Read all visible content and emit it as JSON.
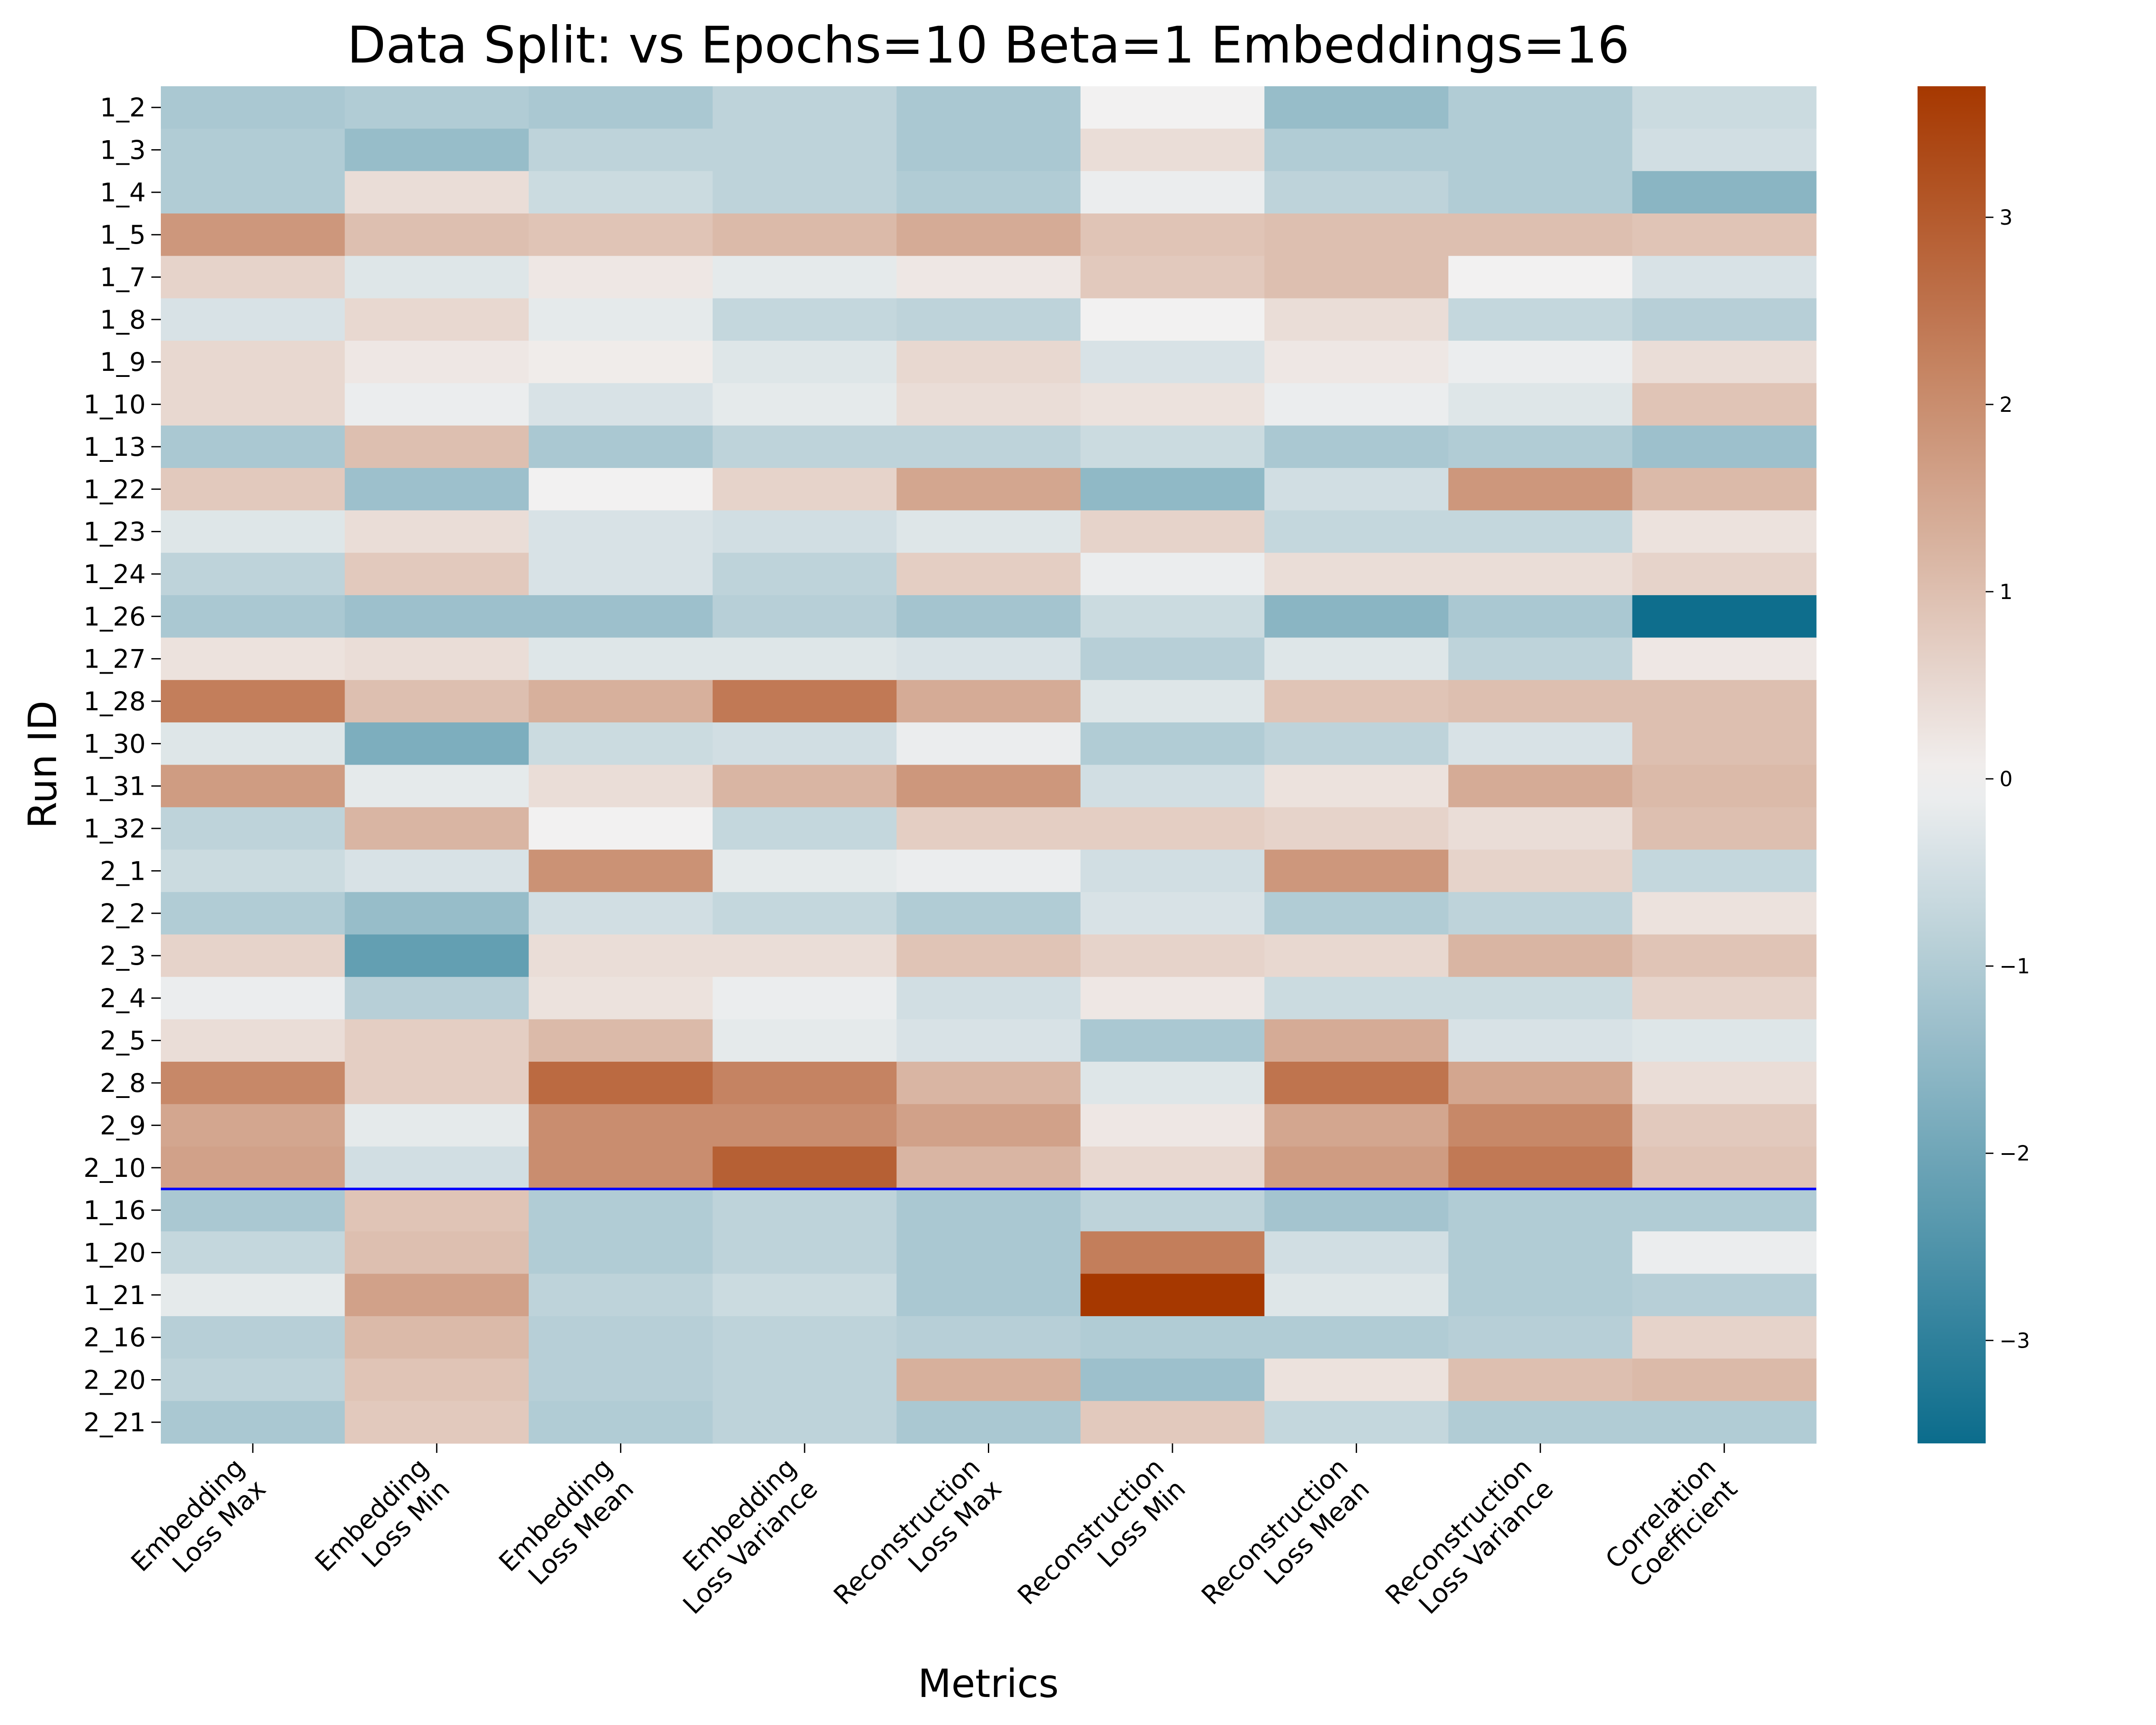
{
  "chart_data": {
    "type": "heatmap",
    "title": "Data Split: vs Epochs=10 Beta=1 Embeddings=16",
    "xlabel": "Metrics",
    "ylabel": "Run ID",
    "columns": [
      [
        "Embedding",
        "Loss Max"
      ],
      [
        "Embedding",
        "Loss Min"
      ],
      [
        "Embedding",
        "Loss Mean"
      ],
      [
        "Embedding",
        "Loss Variance"
      ],
      [
        "Reconstruction",
        "Loss Max"
      ],
      [
        "Reconstruction",
        "Loss Min"
      ],
      [
        "Reconstruction",
        "Loss Mean"
      ],
      [
        "Reconstruction",
        "Loss Variance"
      ],
      [
        "Correlation",
        "Coefficient"
      ]
    ],
    "rows": [
      "1_2",
      "1_3",
      "1_4",
      "1_5",
      "1_7",
      "1_8",
      "1_9",
      "1_10",
      "1_13",
      "1_22",
      "1_23",
      "1_24",
      "1_26",
      "1_27",
      "1_28",
      "1_30",
      "1_31",
      "1_32",
      "2_1",
      "2_2",
      "2_3",
      "2_4",
      "2_5",
      "2_8",
      "2_9",
      "2_10",
      "1_16",
      "1_20",
      "1_21",
      "2_16",
      "2_20",
      "2_21"
    ],
    "values": [
      [
        -1.1,
        -1.0,
        -1.1,
        -0.8,
        -1.1,
        0.0,
        -1.4,
        -1.0,
        -0.6
      ],
      [
        -1.0,
        -1.4,
        -0.8,
        -0.8,
        -1.1,
        0.4,
        -1.0,
        -1.0,
        -0.5
      ],
      [
        -1.0,
        0.4,
        -0.6,
        -0.8,
        -1.0,
        -0.1,
        -0.8,
        -1.0,
        -1.6
      ],
      [
        1.8,
        1.0,
        0.9,
        1.1,
        1.4,
        0.9,
        1.0,
        1.0,
        0.9
      ],
      [
        0.6,
        -0.3,
        0.2,
        -0.2,
        0.2,
        0.8,
        1.0,
        0.0,
        -0.4
      ],
      [
        -0.4,
        0.5,
        -0.2,
        -0.7,
        -0.8,
        0.0,
        0.4,
        -0.7,
        -0.9
      ],
      [
        0.5,
        0.2,
        0.1,
        -0.3,
        0.5,
        -0.4,
        0.2,
        -0.1,
        0.4
      ],
      [
        0.5,
        -0.1,
        -0.4,
        -0.2,
        0.4,
        0.3,
        -0.1,
        -0.3,
        0.9
      ],
      [
        -1.1,
        1.0,
        -1.1,
        -0.8,
        -0.8,
        -0.6,
        -1.1,
        -1.0,
        -1.3
      ],
      [
        0.8,
        -1.3,
        0.0,
        0.6,
        1.5,
        -1.5,
        -0.5,
        1.8,
        1.1
      ],
      [
        -0.3,
        0.4,
        -0.4,
        -0.5,
        -0.3,
        0.6,
        -0.7,
        -0.7,
        0.3
      ],
      [
        -0.8,
        0.8,
        -0.4,
        -0.8,
        0.7,
        -0.1,
        0.4,
        0.4,
        0.6
      ],
      [
        -1.1,
        -1.3,
        -1.3,
        -0.9,
        -1.2,
        -0.6,
        -1.6,
        -1.1,
        -3.5
      ],
      [
        0.3,
        0.4,
        -0.3,
        -0.3,
        -0.4,
        -0.9,
        -0.3,
        -0.8,
        0.2
      ],
      [
        2.3,
        1.0,
        1.3,
        2.4,
        1.4,
        -0.3,
        0.9,
        1.0,
        1.0
      ],
      [
        -0.3,
        -1.8,
        -0.6,
        -0.5,
        -0.1,
        -1.0,
        -0.8,
        -0.4,
        1.0
      ],
      [
        1.7,
        -0.2,
        0.4,
        1.2,
        1.8,
        -0.5,
        0.3,
        1.4,
        1.1
      ],
      [
        -0.8,
        1.2,
        0.0,
        -0.7,
        0.7,
        0.7,
        0.6,
        0.4,
        1.0
      ],
      [
        -0.6,
        -0.4,
        1.9,
        -0.2,
        -0.1,
        -0.5,
        1.8,
        0.6,
        -0.7
      ],
      [
        -1.0,
        -1.4,
        -0.5,
        -0.7,
        -1.0,
        -0.4,
        -1.0,
        -0.8,
        0.3
      ],
      [
        0.6,
        -2.2,
        0.4,
        0.4,
        0.9,
        0.6,
        0.5,
        1.2,
        0.9
      ],
      [
        -0.1,
        -0.9,
        0.3,
        -0.1,
        -0.5,
        0.2,
        -0.6,
        -0.6,
        0.6
      ],
      [
        0.4,
        0.7,
        1.1,
        -0.2,
        -0.4,
        -1.1,
        1.4,
        -0.4,
        -0.3
      ],
      [
        2.1,
        0.7,
        2.7,
        2.2,
        1.2,
        -0.3,
        2.5,
        1.5,
        0.4
      ],
      [
        1.5,
        -0.2,
        2.0,
        2.0,
        1.6,
        0.2,
        1.5,
        2.1,
        0.8
      ],
      [
        1.6,
        -0.5,
        2.0,
        2.9,
        1.2,
        0.5,
        1.7,
        2.4,
        0.9
      ],
      [
        -1.1,
        0.9,
        -1.0,
        -0.8,
        -1.1,
        -0.8,
        -1.2,
        -1.0,
        -1.0
      ],
      [
        -0.7,
        1.0,
        -1.0,
        -0.8,
        -1.1,
        2.3,
        -0.5,
        -1.0,
        -0.1
      ],
      [
        -0.2,
        1.6,
        -0.8,
        -0.6,
        -1.1,
        3.7,
        -0.3,
        -1.0,
        -0.9
      ],
      [
        -0.9,
        1.1,
        -0.9,
        -0.8,
        -0.9,
        -1.0,
        -1.0,
        -0.9,
        0.6
      ],
      [
        -0.8,
        0.9,
        -0.9,
        -0.8,
        1.3,
        -1.3,
        0.3,
        1.0,
        1.1
      ],
      [
        -1.1,
        0.8,
        -1.0,
        -0.8,
        -1.1,
        0.8,
        -0.7,
        -1.0,
        -1.0
      ]
    ],
    "separator_after_row": "2_10",
    "separator_color": "#0000ff",
    "vmin": -3.55,
    "vmax": 3.7,
    "colormap": {
      "low": "#0b6c8c",
      "mid": "#f2f1f1",
      "high": "#a63800"
    },
    "colorbar_ticks": [
      {
        "value": 3,
        "label": "3"
      },
      {
        "value": 2,
        "label": "2"
      },
      {
        "value": 1,
        "label": "1"
      },
      {
        "value": 0,
        "label": "0"
      },
      {
        "value": -1,
        "label": "−1"
      },
      {
        "value": -2,
        "label": "−2"
      },
      {
        "value": -3,
        "label": "−3"
      }
    ],
    "grid": false,
    "legend": "colorbar-right"
  }
}
